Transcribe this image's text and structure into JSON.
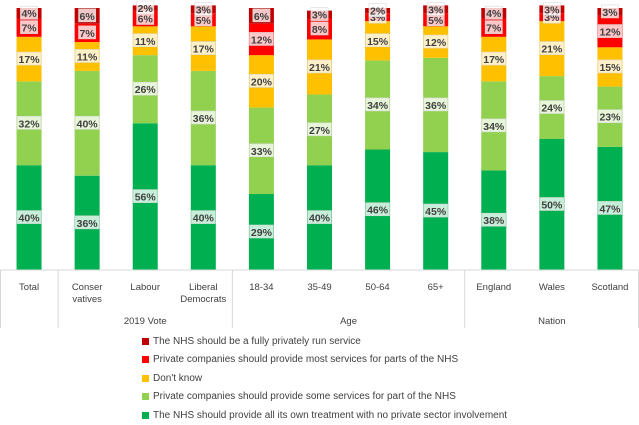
{
  "chart_data": {
    "type": "bar",
    "stacked": true,
    "percent": true,
    "categories": [
      "Total",
      "Conser\nvatives",
      "Labour",
      "Liberal\nDemocrats",
      "18-34",
      "35-49",
      "50-64",
      "65+",
      "England",
      "Wales",
      "Scotland"
    ],
    "groups": [
      {
        "label": "",
        "from": 0,
        "to": 0
      },
      {
        "label": "2019 Vote",
        "from": 1,
        "to": 3
      },
      {
        "label": "Age",
        "from": 4,
        "to": 7
      },
      {
        "label": "Nation",
        "from": 8,
        "to": 10
      }
    ],
    "series": [
      {
        "name": "The NHS should provide all its own treatment with no private sector involvement",
        "color": "#00b050",
        "values": [
          40,
          36,
          56,
          40,
          29,
          40,
          46,
          45,
          38,
          50,
          47
        ],
        "labels": [
          "40%",
          "36%",
          "56%",
          "40%",
          "29%",
          "40%",
          "46%",
          "45%",
          "38%",
          "50%",
          "47%"
        ]
      },
      {
        "name": "Private companies should provide some services for part of the NHS",
        "color": "#92d050",
        "values": [
          32,
          40,
          26,
          36,
          33,
          27,
          34,
          36,
          34,
          24,
          23
        ],
        "labels": [
          "32%",
          "40%",
          "26%",
          "36%",
          "33%",
          "27%",
          "34%",
          "36%",
          "34%",
          "24%",
          "23%"
        ]
      },
      {
        "name": "Don't know",
        "color": "#ffc000",
        "values": [
          17,
          11,
          11,
          17,
          20,
          21,
          15,
          12,
          17,
          21,
          15
        ],
        "labels": [
          "17%",
          "11%",
          "11%",
          "17%",
          "20%",
          "21%",
          "15%",
          "12%",
          "17%",
          "21%",
          "15%"
        ]
      },
      {
        "name": "Private companies should provide most services for parts of the NHS",
        "color": "#ff0000",
        "values": [
          7,
          7,
          6,
          5,
          12,
          8,
          3,
          5,
          7,
          3,
          12
        ],
        "labels": [
          "7%",
          "7%",
          "6%",
          "5%",
          "12%",
          "8%",
          "3%",
          "5%",
          "7%",
          "3%",
          "12%"
        ]
      },
      {
        "name": "The NHS should be a fully privately run service",
        "color": "#c00000",
        "values": [
          4,
          6,
          2,
          3,
          6,
          3,
          2,
          3,
          4,
          3,
          3
        ],
        "labels": [
          "4%",
          "6%",
          "2%",
          "3%",
          "6%",
          "3%",
          "2%",
          "3%",
          "4%",
          "3%",
          "3%"
        ]
      }
    ],
    "ylim": [
      0,
      100
    ],
    "legend_position": "bottom"
  }
}
